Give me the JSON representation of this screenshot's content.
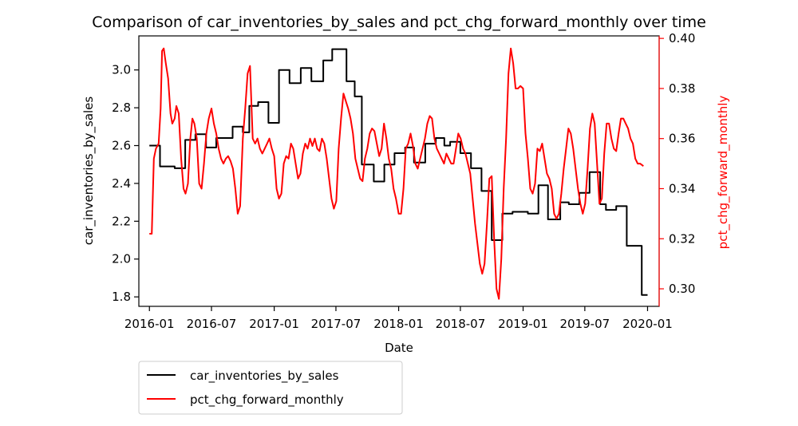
{
  "chart_data": {
    "type": "line",
    "title": "Comparison of car_inventories_by_sales and pct_chg_forward_monthly over time",
    "xlabel": "Date",
    "ylabel_left": "car_inventories_by_sales",
    "ylabel_right": "pct_chg_forward_monthly",
    "x_ticks": [
      "2016-01",
      "2016-07",
      "2017-01",
      "2017-07",
      "2018-01",
      "2018-07",
      "2019-01",
      "2019-07",
      "2020-01"
    ],
    "y_left_ticks": [
      "1.8",
      "2.0",
      "2.2",
      "2.4",
      "2.6",
      "2.8",
      "3.0"
    ],
    "y_right_ticks": [
      "0.30",
      "0.32",
      "0.34",
      "0.36",
      "0.38",
      "0.40"
    ],
    "y_left_lim": [
      1.75,
      3.18
    ],
    "y_right_lim": [
      0.293,
      0.401
    ],
    "grid": false,
    "legend_placement": "below-left",
    "colors": {
      "left_series": "#000000",
      "right_series": "#ff0000"
    },
    "series": [
      {
        "name": "car_inventories_by_sales",
        "axis": "left",
        "color": "#000000",
        "step": true,
        "points": [
          [
            "2016-01-01",
            2.6
          ],
          [
            "2016-02-01",
            2.49
          ],
          [
            "2016-03-15",
            2.48
          ],
          [
            "2016-04-15",
            2.63
          ],
          [
            "2016-05-15",
            2.66
          ],
          [
            "2016-06-15",
            2.59
          ],
          [
            "2016-07-15",
            2.64
          ],
          [
            "2016-09-01",
            2.7
          ],
          [
            "2016-10-01",
            2.67
          ],
          [
            "2016-10-20",
            2.81
          ],
          [
            "2016-11-15",
            2.83
          ],
          [
            "2016-12-15",
            2.72
          ],
          [
            "2017-01-15",
            3.0
          ],
          [
            "2017-02-15",
            2.93
          ],
          [
            "2017-03-20",
            3.01
          ],
          [
            "2017-04-20",
            2.94
          ],
          [
            "2017-05-25",
            3.05
          ],
          [
            "2017-06-20",
            3.11
          ],
          [
            "2017-08-01",
            2.94
          ],
          [
            "2017-08-25",
            2.86
          ],
          [
            "2017-09-15",
            2.5
          ],
          [
            "2017-10-20",
            2.41
          ],
          [
            "2017-11-20",
            2.5
          ],
          [
            "2017-12-20",
            2.56
          ],
          [
            "2018-01-20",
            2.59
          ],
          [
            "2018-02-15",
            2.51
          ],
          [
            "2018-03-20",
            2.61
          ],
          [
            "2018-04-20",
            2.64
          ],
          [
            "2018-05-15",
            2.6
          ],
          [
            "2018-06-01",
            2.62
          ],
          [
            "2018-07-01",
            2.56
          ],
          [
            "2018-08-01",
            2.48
          ],
          [
            "2018-09-01",
            2.36
          ],
          [
            "2018-10-01",
            2.1
          ],
          [
            "2018-11-01",
            2.24
          ],
          [
            "2018-12-01",
            2.25
          ],
          [
            "2019-01-15",
            2.24
          ],
          [
            "2019-02-15",
            2.39
          ],
          [
            "2019-03-15",
            2.21
          ],
          [
            "2019-04-20",
            2.3
          ],
          [
            "2019-05-15",
            2.29
          ],
          [
            "2019-06-15",
            2.35
          ],
          [
            "2019-07-15",
            2.46
          ],
          [
            "2019-08-15",
            2.29
          ],
          [
            "2019-09-01",
            2.26
          ],
          [
            "2019-10-01",
            2.28
          ],
          [
            "2019-11-01",
            2.07
          ],
          [
            "2019-12-15",
            1.81
          ],
          [
            "2020-01-01",
            1.81
          ]
        ]
      },
      {
        "name": "pct_chg_forward_monthly",
        "axis": "right",
        "color": "#ff0000",
        "step": false,
        "points": [
          [
            "2016-01-01",
            0.322
          ],
          [
            "2016-01-08",
            0.322
          ],
          [
            "2016-01-14",
            0.352
          ],
          [
            "2016-01-20",
            0.356
          ],
          [
            "2016-01-28",
            0.358
          ],
          [
            "2016-02-03",
            0.372
          ],
          [
            "2016-02-07",
            0.395
          ],
          [
            "2016-02-12",
            0.396
          ],
          [
            "2016-02-18",
            0.39
          ],
          [
            "2016-02-25",
            0.384
          ],
          [
            "2016-03-03",
            0.37
          ],
          [
            "2016-03-08",
            0.366
          ],
          [
            "2016-03-15",
            0.368
          ],
          [
            "2016-03-20",
            0.373
          ],
          [
            "2016-03-27",
            0.37
          ],
          [
            "2016-04-03",
            0.352
          ],
          [
            "2016-04-10",
            0.34
          ],
          [
            "2016-04-16",
            0.338
          ],
          [
            "2016-04-23",
            0.342
          ],
          [
            "2016-04-30",
            0.36
          ],
          [
            "2016-05-06",
            0.368
          ],
          [
            "2016-05-12",
            0.366
          ],
          [
            "2016-05-19",
            0.36
          ],
          [
            "2016-05-26",
            0.342
          ],
          [
            "2016-06-02",
            0.34
          ],
          [
            "2016-06-09",
            0.35
          ],
          [
            "2016-06-16",
            0.362
          ],
          [
            "2016-06-23",
            0.368
          ],
          [
            "2016-07-01",
            0.372
          ],
          [
            "2016-07-08",
            0.366
          ],
          [
            "2016-07-15",
            0.362
          ],
          [
            "2016-07-22",
            0.356
          ],
          [
            "2016-07-29",
            0.352
          ],
          [
            "2016-08-05",
            0.35
          ],
          [
            "2016-08-12",
            0.352
          ],
          [
            "2016-08-19",
            0.353
          ],
          [
            "2016-08-26",
            0.351
          ],
          [
            "2016-09-02",
            0.348
          ],
          [
            "2016-09-09",
            0.34
          ],
          [
            "2016-09-16",
            0.33
          ],
          [
            "2016-09-23",
            0.333
          ],
          [
            "2016-10-01",
            0.36
          ],
          [
            "2016-10-08",
            0.372
          ],
          [
            "2016-10-15",
            0.386
          ],
          [
            "2016-10-22",
            0.389
          ],
          [
            "2016-10-30",
            0.36
          ],
          [
            "2016-11-06",
            0.358
          ],
          [
            "2016-11-13",
            0.36
          ],
          [
            "2016-11-20",
            0.356
          ],
          [
            "2016-11-27",
            0.354
          ],
          [
            "2016-12-04",
            0.356
          ],
          [
            "2016-12-11",
            0.358
          ],
          [
            "2016-12-18",
            0.36
          ],
          [
            "2016-12-25",
            0.356
          ],
          [
            "2017-01-01",
            0.353
          ],
          [
            "2017-01-08",
            0.34
          ],
          [
            "2017-01-15",
            0.336
          ],
          [
            "2017-01-22",
            0.338
          ],
          [
            "2017-01-29",
            0.35
          ],
          [
            "2017-02-05",
            0.353
          ],
          [
            "2017-02-12",
            0.352
          ],
          [
            "2017-02-19",
            0.358
          ],
          [
            "2017-02-26",
            0.356
          ],
          [
            "2017-03-05",
            0.35
          ],
          [
            "2017-03-12",
            0.344
          ],
          [
            "2017-03-19",
            0.346
          ],
          [
            "2017-03-26",
            0.354
          ],
          [
            "2017-04-02",
            0.358
          ],
          [
            "2017-04-09",
            0.356
          ],
          [
            "2017-04-16",
            0.36
          ],
          [
            "2017-04-23",
            0.357
          ],
          [
            "2017-04-30",
            0.36
          ],
          [
            "2017-05-07",
            0.356
          ],
          [
            "2017-05-14",
            0.355
          ],
          [
            "2017-05-21",
            0.36
          ],
          [
            "2017-05-28",
            0.358
          ],
          [
            "2017-06-04",
            0.352
          ],
          [
            "2017-06-11",
            0.344
          ],
          [
            "2017-06-18",
            0.336
          ],
          [
            "2017-06-25",
            0.332
          ],
          [
            "2017-07-02",
            0.335
          ],
          [
            "2017-07-09",
            0.356
          ],
          [
            "2017-07-16",
            0.368
          ],
          [
            "2017-07-23",
            0.378
          ],
          [
            "2017-07-30",
            0.375
          ],
          [
            "2017-08-06",
            0.372
          ],
          [
            "2017-08-13",
            0.368
          ],
          [
            "2017-08-20",
            0.362
          ],
          [
            "2017-08-27",
            0.352
          ],
          [
            "2017-09-03",
            0.348
          ],
          [
            "2017-09-10",
            0.344
          ],
          [
            "2017-09-17",
            0.343
          ],
          [
            "2017-09-24",
            0.352
          ],
          [
            "2017-10-01",
            0.356
          ],
          [
            "2017-10-08",
            0.362
          ],
          [
            "2017-10-15",
            0.364
          ],
          [
            "2017-10-22",
            0.363
          ],
          [
            "2017-10-29",
            0.358
          ],
          [
            "2017-11-05",
            0.353
          ],
          [
            "2017-11-12",
            0.356
          ],
          [
            "2017-11-19",
            0.366
          ],
          [
            "2017-11-26",
            0.36
          ],
          [
            "2017-12-03",
            0.352
          ],
          [
            "2017-12-10",
            0.348
          ],
          [
            "2017-12-17",
            0.34
          ],
          [
            "2017-12-24",
            0.336
          ],
          [
            "2018-01-01",
            0.33
          ],
          [
            "2018-01-08",
            0.33
          ],
          [
            "2018-01-15",
            0.34
          ],
          [
            "2018-01-22",
            0.356
          ],
          [
            "2018-01-29",
            0.358
          ],
          [
            "2018-02-05",
            0.362
          ],
          [
            "2018-02-12",
            0.357
          ],
          [
            "2018-02-19",
            0.35
          ],
          [
            "2018-02-26",
            0.348
          ],
          [
            "2018-03-05",
            0.352
          ],
          [
            "2018-03-12",
            0.356
          ],
          [
            "2018-03-19",
            0.36
          ],
          [
            "2018-03-26",
            0.366
          ],
          [
            "2018-04-02",
            0.369
          ],
          [
            "2018-04-09",
            0.368
          ],
          [
            "2018-04-16",
            0.36
          ],
          [
            "2018-04-23",
            0.356
          ],
          [
            "2018-04-30",
            0.354
          ],
          [
            "2018-05-07",
            0.352
          ],
          [
            "2018-05-14",
            0.35
          ],
          [
            "2018-05-21",
            0.354
          ],
          [
            "2018-05-28",
            0.352
          ],
          [
            "2018-06-04",
            0.35
          ],
          [
            "2018-06-11",
            0.35
          ],
          [
            "2018-06-18",
            0.356
          ],
          [
            "2018-06-25",
            0.362
          ],
          [
            "2018-07-02",
            0.36
          ],
          [
            "2018-07-09",
            0.356
          ],
          [
            "2018-07-16",
            0.354
          ],
          [
            "2018-07-23",
            0.35
          ],
          [
            "2018-07-30",
            0.346
          ],
          [
            "2018-08-06",
            0.336
          ],
          [
            "2018-08-13",
            0.326
          ],
          [
            "2018-08-20",
            0.318
          ],
          [
            "2018-08-27",
            0.31
          ],
          [
            "2018-09-03",
            0.306
          ],
          [
            "2018-09-10",
            0.31
          ],
          [
            "2018-09-17",
            0.326
          ],
          [
            "2018-09-24",
            0.344
          ],
          [
            "2018-10-01",
            0.345
          ],
          [
            "2018-10-08",
            0.32
          ],
          [
            "2018-10-15",
            0.3
          ],
          [
            "2018-10-22",
            0.296
          ],
          [
            "2018-10-29",
            0.312
          ],
          [
            "2018-11-05",
            0.34
          ],
          [
            "2018-11-12",
            0.36
          ],
          [
            "2018-11-19",
            0.386
          ],
          [
            "2018-11-26",
            0.396
          ],
          [
            "2018-12-03",
            0.39
          ],
          [
            "2018-12-10",
            0.38
          ],
          [
            "2018-12-17",
            0.38
          ],
          [
            "2018-12-24",
            0.381
          ],
          [
            "2019-01-01",
            0.38
          ],
          [
            "2019-01-08",
            0.362
          ],
          [
            "2019-01-15",
            0.352
          ],
          [
            "2019-01-22",
            0.34
          ],
          [
            "2019-01-29",
            0.338
          ],
          [
            "2019-02-05",
            0.342
          ],
          [
            "2019-02-12",
            0.356
          ],
          [
            "2019-02-19",
            0.355
          ],
          [
            "2019-02-26",
            0.358
          ],
          [
            "2019-03-05",
            0.352
          ],
          [
            "2019-03-12",
            0.346
          ],
          [
            "2019-03-19",
            0.344
          ],
          [
            "2019-03-26",
            0.34
          ],
          [
            "2019-04-02",
            0.33
          ],
          [
            "2019-04-09",
            0.328
          ],
          [
            "2019-04-16",
            0.33
          ],
          [
            "2019-04-23",
            0.338
          ],
          [
            "2019-04-30",
            0.348
          ],
          [
            "2019-05-07",
            0.356
          ],
          [
            "2019-05-14",
            0.364
          ],
          [
            "2019-05-21",
            0.362
          ],
          [
            "2019-05-28",
            0.356
          ],
          [
            "2019-06-04",
            0.348
          ],
          [
            "2019-06-11",
            0.34
          ],
          [
            "2019-06-18",
            0.334
          ],
          [
            "2019-06-25",
            0.33
          ],
          [
            "2019-07-02",
            0.334
          ],
          [
            "2019-07-09",
            0.348
          ],
          [
            "2019-07-16",
            0.364
          ],
          [
            "2019-07-23",
            0.37
          ],
          [
            "2019-07-30",
            0.366
          ],
          [
            "2019-08-06",
            0.35
          ],
          [
            "2019-08-13",
            0.334
          ],
          [
            "2019-08-20",
            0.336
          ],
          [
            "2019-08-27",
            0.354
          ],
          [
            "2019-09-03",
            0.366
          ],
          [
            "2019-09-10",
            0.366
          ],
          [
            "2019-09-17",
            0.36
          ],
          [
            "2019-09-24",
            0.356
          ],
          [
            "2019-10-01",
            0.355
          ],
          [
            "2019-10-08",
            0.362
          ],
          [
            "2019-10-15",
            0.368
          ],
          [
            "2019-10-22",
            0.368
          ],
          [
            "2019-10-29",
            0.366
          ],
          [
            "2019-11-05",
            0.364
          ],
          [
            "2019-11-12",
            0.36
          ],
          [
            "2019-11-19",
            0.358
          ],
          [
            "2019-11-26",
            0.352
          ],
          [
            "2019-12-03",
            0.35
          ],
          [
            "2019-12-10",
            0.35
          ],
          [
            "2019-12-20",
            0.349
          ]
        ]
      }
    ]
  }
}
